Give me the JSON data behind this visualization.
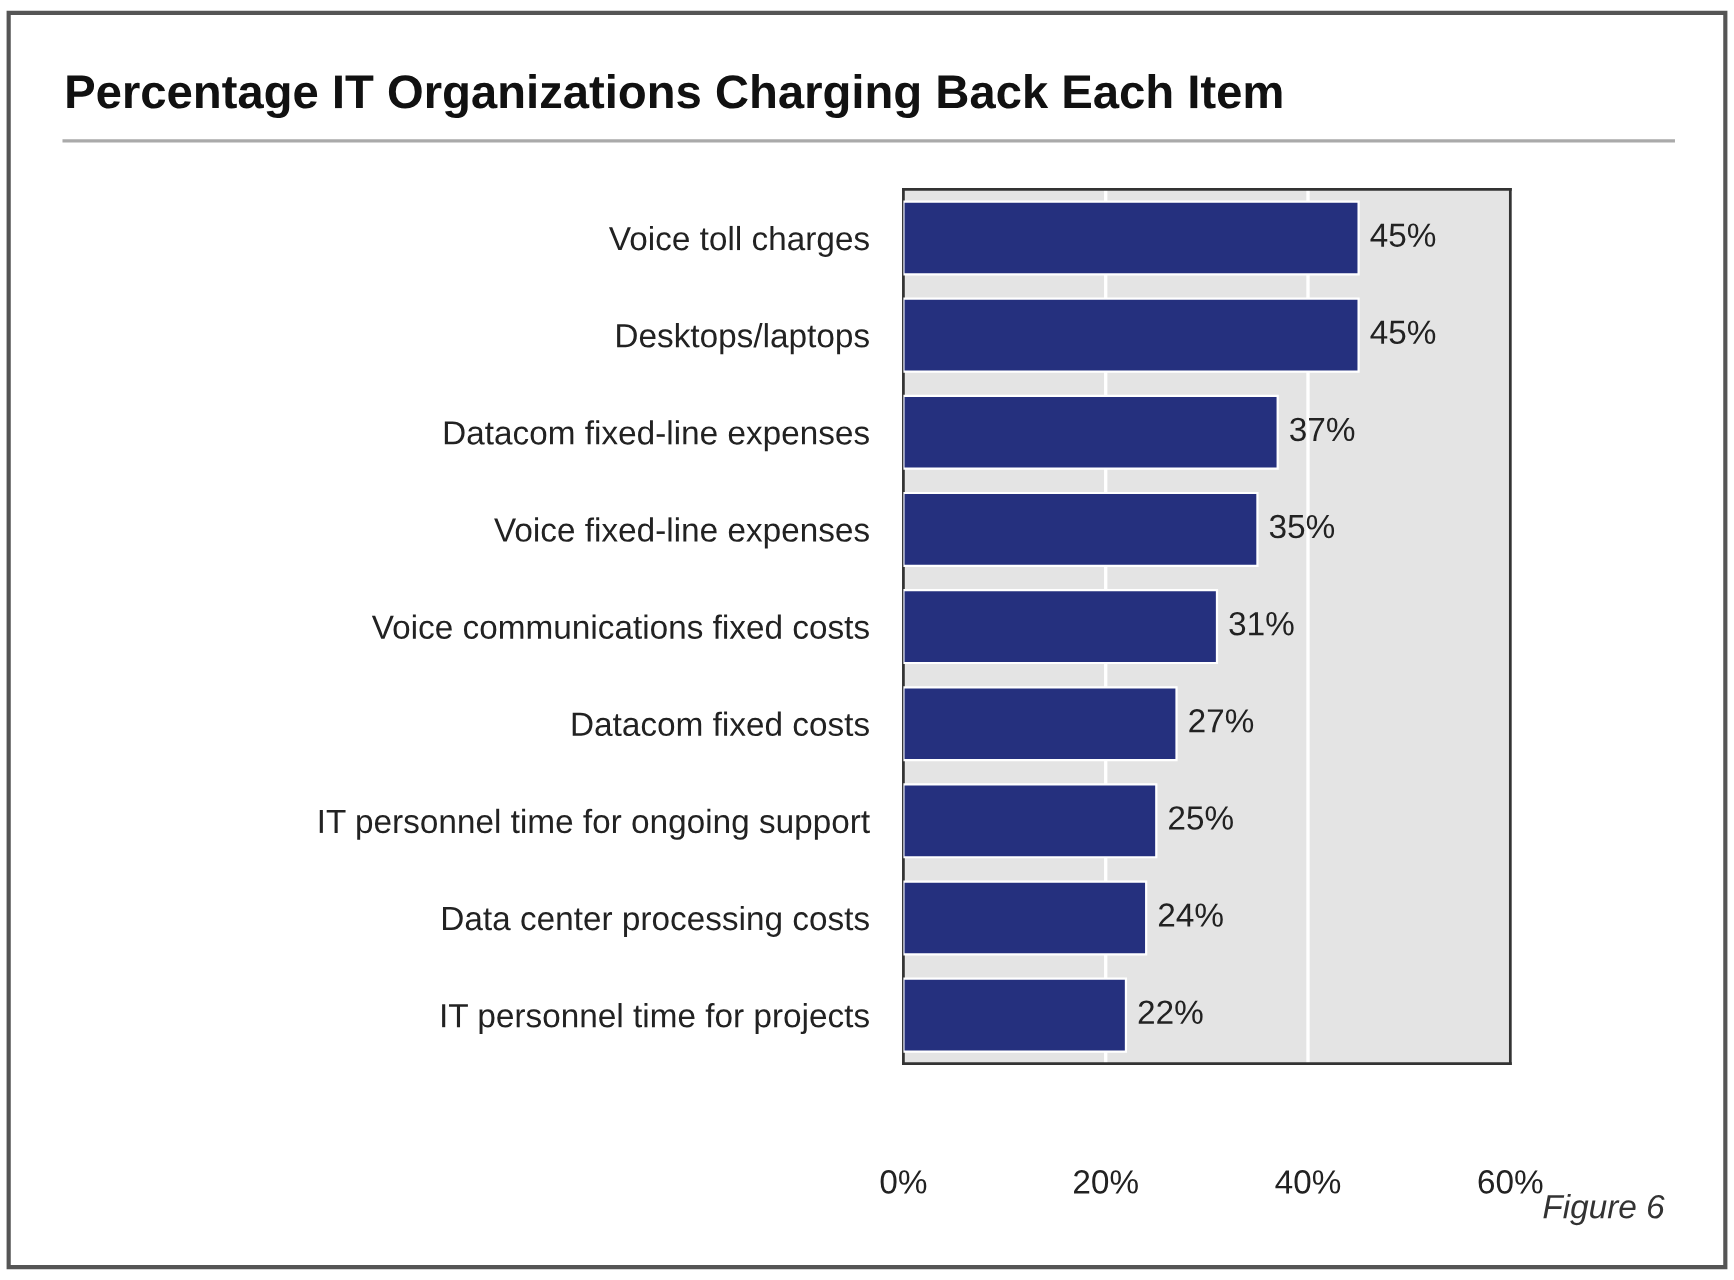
{
  "chart_data": {
    "type": "bar",
    "orientation": "horizontal",
    "title": "Percentage IT Organizations Charging Back Each Item",
    "categories": [
      "Voice toll charges",
      "Desktops/laptops",
      "Datacom fixed-line expenses",
      "Voice fixed-line expenses",
      "Voice communications fixed costs",
      "Datacom fixed costs",
      "IT personnel time for ongoing support",
      "Data center processing costs",
      "IT personnel time for projects"
    ],
    "values": [
      45,
      45,
      37,
      35,
      31,
      27,
      25,
      24,
      22
    ],
    "value_labels": [
      "45%",
      "45%",
      "37%",
      "35%",
      "31%",
      "27%",
      "25%",
      "24%",
      "22%"
    ],
    "color": "#25307e",
    "xlim": [
      0,
      60
    ],
    "xticks": [
      {
        "value": 0,
        "label": "0%"
      },
      {
        "value": 20,
        "label": "20%"
      },
      {
        "value": 40,
        "label": "40%"
      },
      {
        "value": 60,
        "label": "60%"
      }
    ],
    "grid": "x",
    "legend": false,
    "annotations": [
      "Figure 6"
    ]
  }
}
